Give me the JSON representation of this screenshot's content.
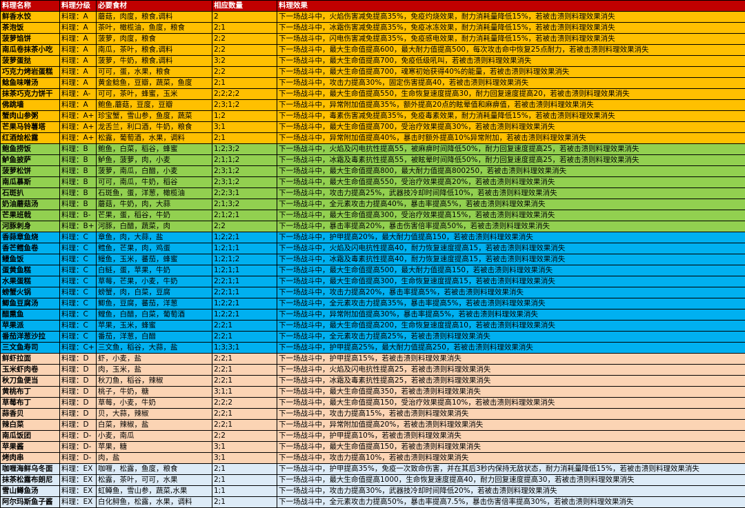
{
  "table": {
    "headers": [
      "料理名称",
      "料理分级",
      "必要食材",
      "相应数量",
      "料理效果"
    ],
    "rows": [
      {
        "tier": "S",
        "cells": [
          "鲜香水饺",
          "料理：A",
          "蘑菇，肉度，粮食,调料",
          "2",
          "下一场战斗中，火焰伤害减免提高35%，免疫灼烧效果，耐力消耗量降低15%，若被击溃则料理效果消失"
        ]
      },
      {
        "tier": "S",
        "cells": [
          "茶泡饭",
          "料理：A",
          "茶叶，橄榄油，鱼度，粮食",
          "2;1",
          "下一场战斗中，冰霜伤害减免提高35%，免疫冰冻效果，耐力消耗量降低15%，若被击溃则料理效果消失"
        ]
      },
      {
        "tier": "S",
        "cells": [
          "菠萝馅饼",
          "料理：A",
          "菠萝，肉度，粮食",
          "2;2",
          "下一场战斗中，闪电伤害减免提高35%，免疫感电效果，耐力消耗量降低15%，若被击溃则料理效果消失"
        ]
      },
      {
        "tier": "S",
        "cells": [
          "南瓜卷抹茶小吃",
          "料理：A",
          "南瓜，茶叶，粮食,调料",
          "2;2",
          "下一场战斗中，最大生命值提高600，最大耐力值提高500，每次攻击命中恢复25点耐力，若被击溃则料理效果消失"
        ]
      },
      {
        "tier": "S",
        "cells": [
          "菠萝蛋挞",
          "料理：A",
          "菠萝，牛奶，粮食,调料",
          "3;2",
          "下一场战斗中，最大生命值提高700，免疫低级吼叫，若被击溃则料理效果消失"
        ]
      },
      {
        "tier": "S",
        "cells": [
          "巧克力烤岩蛋糕",
          "料理：A",
          "可可，蛋，水果，粮食",
          "2;2",
          "下一场战斗中，最大生命值提高700，魂寒初始获得40%的能量，若被击溃则料理效果消失"
        ]
      },
      {
        "tier": "S",
        "cells": [
          "鲶鱼味噌汤",
          "料理：A",
          "黄金鲶鱼，豆瓣，蔬菜，鱼度",
          "2;1",
          "下一场战斗中，攻击力提高30%，固定伤害提高40，若被击溃则料理效果消失"
        ]
      },
      {
        "tier": "S",
        "cells": [
          "抹茶巧克力饼干",
          "料理：A-",
          "可可，茶叶，蜂蜜，玉米",
          "2;2;2;2",
          "下一场战斗中，最大生命值提高550，生命恢复速度提高30，耐力回复速度提高20，若被击溃则料理效果消失"
        ]
      },
      {
        "tier": "S",
        "cells": [
          "佛跳墙",
          "料理：A",
          "鲍鱼,蘑菇，豆度，豆瓣",
          "2;3;1;2",
          "下一场战斗中，异常附加值提高35%，额外提高20点的眩晕值和麻痹值，若被击溃则料理效果消失"
        ]
      },
      {
        "tier": "S",
        "cells": [
          "蟹肉山参粥",
          "料理：A+",
          "珍宝蟹，雪山参，鱼度，蔬菜",
          "1;2",
          "下一场战斗中，毒素伤害减免提高35%，免疫毒素效果，耐力消耗量降低15%，若被击溃则料理效果消失"
        ]
      },
      {
        "tier": "S",
        "cells": [
          "芒果马铃薯塔",
          "料理：A+",
          "龙舌兰，利口酒，牛奶，粮食",
          "3;1",
          "下一场战斗中，最大生命值提高700，受治疗效果提高30%，若被击溃则料理效果消失"
        ]
      },
      {
        "tier": "S",
        "cells": [
          "红酒烩松露",
          "料理：A+",
          "松露，葡萄酒，水果，调料",
          "2;1",
          "下一场战斗中，异常附加值提高40%，暴击时额外提高10%异常附加，若被击溃则料理效果消失"
        ]
      },
      {
        "tier": "B",
        "cells": [
          "鲍鱼捞饭",
          "料理：B",
          "鲍鱼，白菜，稻谷，蜂蜜",
          "1;2;3;2",
          "下一场战斗中，火焰及闪电抗性提高55，被麻痹时间降低50%，耐力回复速度提高25，若被击溃则料理效果消失"
        ]
      },
      {
        "tier": "B",
        "cells": [
          "鲈鱼披萨",
          "料理：B",
          "鲈鱼，菠萝，肉，小麦",
          "2;1;1;2",
          "下一场战斗中，冰霜及毒素抗性提高55，被眩晕时间降低50%，耐力回复速度提高25，若被击溃则料理效果消失"
        ]
      },
      {
        "tier": "B",
        "cells": [
          "菠萝松饼",
          "料理：B",
          "菠萝，南瓜，白醋，小麦",
          "2;3;1;2",
          "下一场战斗中，最大生命值提高800，最大耐力值提高800250，若被击溃则料理效果消失"
        ]
      },
      {
        "tier": "B",
        "cells": [
          "南瓜慕斯",
          "料理：B",
          "可可，南瓜，牛奶，稻谷",
          "2;3;1;2",
          "下一场战斗中，最大生命值提高550，受治疗效果提高20%，若被击溃则料理效果消失"
        ]
      },
      {
        "tier": "B",
        "cells": [
          "石斑扒",
          "料理：B",
          "石斑鱼，蛋，洋葱，橄榄油",
          "2;2;3;1",
          "下一场战斗中，攻击力提高25%，武器技冷却时间降低10%，若被击溃则料理效果消失"
        ]
      },
      {
        "tier": "B",
        "cells": [
          "奶油蘑菇汤",
          "料理：B",
          "蘑菇，牛奶，肉，大蒜",
          "2;1;3;2",
          "下一场战斗中，全元素攻击力提高40%，暴击率提高5%，若被击溃则料理效果消失"
        ]
      },
      {
        "tier": "B",
        "cells": [
          "芒果班戟",
          "料理：B-",
          "芒果，蛋，稻谷，牛奶",
          "2;1;2;1",
          "下一场战斗中，最大生命值提高300，受治疗效果提高15%，若被击溃则料理效果消失"
        ]
      },
      {
        "tier": "B",
        "cells": [
          "河豚刺身",
          "料理：B+",
          "河豚，白醋，蔬菜，肉",
          "2;2",
          "下一场战斗中，暴击率提高20%，暴击伤害倍率提高50%，若被击溃则料理效果消失"
        ]
      },
      {
        "tier": "C",
        "cells": [
          "香蒜章鱼烧",
          "料理：C",
          "章鱼，肉，大蒜，盐",
          "1;2;2;1",
          "下一场战斗中，护甲提高20%，最大耐力值提高150，若被击溃则料理效果消失"
        ]
      },
      {
        "tier": "C",
        "cells": [
          "香芒鳕鱼卷",
          "料理：C",
          "鳕鱼，芒果，肉，鸡蛋",
          "1;2;1;1",
          "下一场战斗中，火焰及闪电抗性提高40，耐力恢复速度提高15，若被击溃则料理效果消失"
        ]
      },
      {
        "tier": "C",
        "cells": [
          "鳗鱼饭",
          "料理：C",
          "鳗鱼，玉米，蕃茄，蜂蜜",
          "1;2;1;2",
          "下一场战斗中，冰霜及毒素抗性提高40，耐力恢复速度提高15，若被击溃则料理效果消失"
        ]
      },
      {
        "tier": "C",
        "cells": [
          "蛋黄鱼糕",
          "料理：C",
          "白鲢，蛋，苹果，牛奶",
          "1;2;1;1",
          "下一场战斗中，最大生命值提高500，最大耐力值提高150，若被击溃则料理效果消失"
        ]
      },
      {
        "tier": "C",
        "cells": [
          "水果蛋糕",
          "料理：C",
          "草莓，芒果，小麦，牛奶",
          "2;2;1;1",
          "下一场战斗中，最大生命值提高300，生命恢复速度提高15，若被击溃则料理效果消失"
        ]
      },
      {
        "tier": "C",
        "cells": [
          "螃蟹火锅",
          "料理：C",
          "螃蟹，肉，白菜，豆腐",
          "2;2;1;1",
          "下一场战斗中，攻击力提高20%，暴击率提高5%，若被击溃则料理效果消失"
        ]
      },
      {
        "tier": "C",
        "cells": [
          "鲫鱼豆腐汤",
          "料理：C",
          "鲫鱼，豆腐，蕃茄，洋葱",
          "1;2;2;1",
          "下一场战斗中，全元素攻击力提高35%，暴击率提高5%，若被击溃则料理效果消失"
        ]
      },
      {
        "tier": "C",
        "cells": [
          "醋熏鱼",
          "料理：C",
          "鲤鱼，白醋，白菜，葡萄酒",
          "1;2;2;1",
          "下一场战斗中，异常附加值提高30%，暴击率提高5%，若被击溃则料理效果消失"
        ]
      },
      {
        "tier": "C",
        "cells": [
          "苹果派",
          "料理：C",
          "苹果，玉米，蜂蜜",
          "2;2;1",
          "下一场战斗中，最大生命值提高200，生命恢复速度提高10，若被击溃则料理效果消失"
        ]
      },
      {
        "tier": "C",
        "cells": [
          "番茄洋葱沙拉",
          "料理：C",
          "番茄，洋葱，白醋",
          "2;2;1",
          "下一场战斗中，全元素攻击力提高25%，若被击溃则料理效果消失"
        ]
      },
      {
        "tier": "C",
        "cells": [
          "三文鱼寿司",
          "料理：C+",
          "三文鱼，稻谷，大蒜，盐",
          "1;3;3;1",
          "下一场战斗中，护甲提高25%，最大耐力值提高250，若被击溃则料理效果消失"
        ]
      },
      {
        "tier": "D",
        "cells": [
          "鲜虾拉面",
          "料理：D",
          "虾，小麦，盐",
          "2;2;1",
          "下一场战斗中，护甲提高15%，若被击溃则料理效果消失"
        ]
      },
      {
        "tier": "D",
        "cells": [
          "玉米虾肉卷",
          "料理：D",
          "肉，玉米，盐",
          "2;2;1",
          "下一场战斗中，火焰及闪电抗性提高25，若被击溃则料理效果消失"
        ]
      },
      {
        "tier": "D",
        "cells": [
          "秋刀鱼便当",
          "料理：D",
          "秋刀鱼，稻谷，辣椒",
          "2;2;1",
          "下一场战斗中，冰霜及毒素抗性提高25，若被击溃则料理效果消失"
        ]
      },
      {
        "tier": "D",
        "cells": [
          "黄桃布丁",
          "料理：D",
          "桃子，牛奶，糖",
          "3;1;1",
          "下一场战斗中，最大生命值提高350，若被击溃则料理效果消失"
        ]
      },
      {
        "tier": "D",
        "cells": [
          "草莓布丁",
          "料理：D",
          "草莓，小麦，牛奶",
          "2;2;2",
          "下一场战斗中，最大生命值提高150，受治疗效果提高10%，若被击溃则料理效果消失"
        ]
      },
      {
        "tier": "D",
        "cells": [
          "蒜香贝",
          "料理：D",
          "贝，大蒜，辣椒",
          "2;2;1",
          "下一场战斗中，攻击力提高15%，若被击溃则料理效果消失"
        ]
      },
      {
        "tier": "D",
        "cells": [
          "辣白菜",
          "料理：D",
          "白菜，辣椒，盐",
          "2;2;1",
          "下一场战斗中，异常附加值提高20%，若被击溃则料理效果消失"
        ]
      },
      {
        "tier": "D",
        "cells": [
          "南瓜饭团",
          "料理：D-",
          "小麦，南瓜",
          "2;2",
          "下一场战斗中，护甲提高10%，若被击溃则料理效果消失"
        ]
      },
      {
        "tier": "D",
        "cells": [
          "苹果酱",
          "料理：D-",
          "苹果，糖",
          "3;1",
          "下一场战斗中，最大生命值提高150，若被击溃则料理效果消失"
        ]
      },
      {
        "tier": "D",
        "cells": [
          "烤肉串",
          "料理：D-",
          "肉，盐",
          "3;1",
          "下一场战斗中，攻击力提高10%，若被击溃则料理效果消失"
        ]
      },
      {
        "tier": "EX",
        "cells": [
          "咖喱海鲜乌冬面",
          "料理：EX",
          "咖喱，松露，鱼度，粮食",
          "2;1",
          "下一场战斗中，护甲提高35%，免疫一次致命伤害，并在其后3秒内保持无敌状态，耐力消耗量降低15%，若被击溃则料理效果消失"
        ]
      },
      {
        "tier": "EX",
        "cells": [
          "抹茶松露布朗尼",
          "料理：EX",
          "松露，茶叶，可可，水果",
          "2;1",
          "下一场战斗中，最大生命值提高1000，生命恢复速度提高40，耐力回复速度提高30，若被击溃则料理效果消失"
        ]
      },
      {
        "tier": "EX",
        "cells": [
          "雪山鳟鱼汤",
          "料理：EX",
          "虹鳟鱼，雪山参，蔬菜,水果",
          "1;1",
          "下一场战斗中，攻击力提高30%，武器技冷却时间降低20%，若被击溃则料理效果消失"
        ]
      },
      {
        "tier": "EX",
        "cells": [
          "阿尔玛斯鱼子酱",
          "料理：EX",
          "白化鲟鱼，松露，水果，调料",
          "2;1",
          "下一场战斗中，全元素攻击力提高50%，暴击率提高7.5%，暴击伤害倍率提高30%，若被击溃则料理效果消失"
        ]
      }
    ]
  },
  "colors": {
    "header_bg": "#c00000",
    "header_text": "#ffffff",
    "tier_S": "#ffc000",
    "tier_B": "#92d050",
    "tier_C": "#00b0f0",
    "tier_D": "#fbd4b4",
    "tier_EX": "#ddebf7"
  }
}
